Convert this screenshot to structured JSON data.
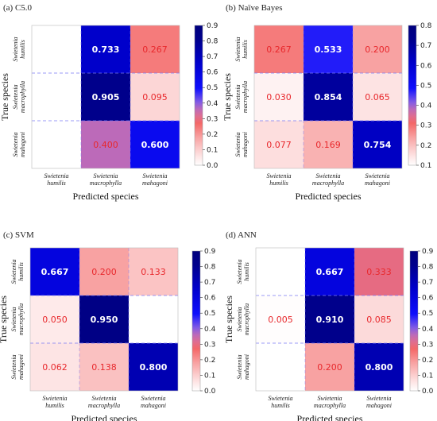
{
  "chart_data": [
    {
      "type": "heatmap",
      "title": "(a) C5.0",
      "xlabel": "Predicted species",
      "ylabel": "True species",
      "categories": [
        "Swietenia humilis",
        "Swietenia macrophylla",
        "Swietenia mahagoni"
      ],
      "values": [
        [
          null,
          0.733,
          0.267
        ],
        [
          null,
          0.905,
          0.095
        ],
        [
          null,
          0.4,
          0.6
        ]
      ],
      "labels": [
        [
          "",
          "0.733",
          "0.267"
        ],
        [
          "",
          "0.905",
          "0.095"
        ],
        [
          "",
          "0.400",
          "0.600"
        ]
      ],
      "colorbar": {
        "min": 0.0,
        "max": 0.9,
        "ticks": [
          "0.9",
          "0.8",
          "0.7",
          "0.6",
          "0.5",
          "0.4",
          "0.3",
          "0.2",
          "0.1",
          "0.0"
        ]
      }
    },
    {
      "type": "heatmap",
      "title": "(b) Naïve Bayes",
      "xlabel": "Predicted species",
      "ylabel": "True species",
      "categories": [
        "Swietenia humilis",
        "Swietenia macrophylla",
        "Swietenia mahagoni"
      ],
      "values": [
        [
          0.267,
          0.533,
          0.2
        ],
        [
          0.03,
          0.854,
          0.065
        ],
        [
          0.077,
          0.169,
          0.754
        ]
      ],
      "labels": [
        [
          "0.267",
          "0.533",
          "0.200"
        ],
        [
          "0.030",
          "0.854",
          "0.065"
        ],
        [
          "0.077",
          "0.169",
          "0.754"
        ]
      ],
      "colorbar": {
        "min": 0.03,
        "max": 0.854,
        "ticks": [
          "0.8",
          "0.7",
          "0.6",
          "0.5",
          "0.4",
          "0.3",
          "0.2",
          "0.1"
        ]
      }
    },
    {
      "type": "heatmap",
      "title": "(c) SVM",
      "xlabel": "Predicted species",
      "ylabel": "True species",
      "categories": [
        "Swietenia humilis",
        "Swietenia macrophylla",
        "Swietenia mahagoni"
      ],
      "values": [
        [
          0.667,
          0.2,
          0.133
        ],
        [
          0.05,
          0.95,
          null
        ],
        [
          0.062,
          0.138,
          0.8
        ]
      ],
      "labels": [
        [
          "0.667",
          "0.200",
          "0.133"
        ],
        [
          "0.050",
          "0.950",
          ""
        ],
        [
          "0.062",
          "0.138",
          "0.800"
        ]
      ],
      "colorbar": {
        "min": 0.0,
        "max": 0.95,
        "ticks": [
          "0.9",
          "0.8",
          "0.7",
          "0.6",
          "0.5",
          "0.4",
          "0.3",
          "0.2",
          "0.1",
          "0.0"
        ]
      }
    },
    {
      "type": "heatmap",
      "title": "(d) ANN",
      "xlabel": "Predicted species",
      "ylabel": "True species",
      "categories": [
        "Swietenia humilis",
        "Swietenia macrophylla",
        "Swietenia mahagoni"
      ],
      "values": [
        [
          null,
          0.667,
          0.333
        ],
        [
          0.005,
          0.91,
          0.085
        ],
        [
          null,
          0.2,
          0.8
        ]
      ],
      "labels": [
        [
          "",
          "0.667",
          "0.333"
        ],
        [
          "0.005",
          "0.910",
          "0.085"
        ],
        [
          "",
          "0.200",
          "0.800"
        ]
      ],
      "colorbar": {
        "min": 0.0,
        "max": 0.91,
        "ticks": [
          "0.9",
          "0.8",
          "0.7",
          "0.6",
          "0.5",
          "0.4",
          "0.3",
          "0.2",
          "0.1",
          "0.0"
        ]
      }
    }
  ]
}
